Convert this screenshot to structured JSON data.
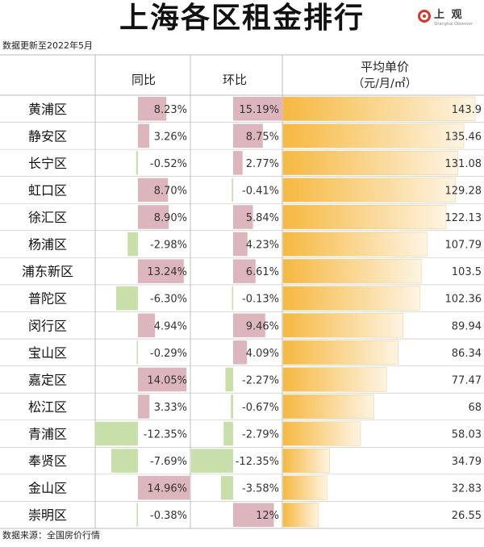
{
  "title": "上海各区租金排行",
  "brand": {
    "name": "上 观",
    "sub": "Shanghai Observer"
  },
  "note": "数据更新至2022年5月",
  "source": "数据来源：全国房价行情",
  "columns": {
    "yoy": "同比",
    "mom": "环比",
    "price_line1": "平均单价",
    "price_line2": "（元/月/㎡）"
  },
  "colors": {
    "bar_pos": "#ddb6bd",
    "bar_neg": "#c9dfaa",
    "price_start": "#f6b840",
    "price_end": "#fdf4e3",
    "grid": "#bdbdbd"
  },
  "chart_data": [
    {
      "type": "bar",
      "title": "同比",
      "categories": [
        "黄浦区",
        "静安区",
        "长宁区",
        "虹口区",
        "徐汇区",
        "杨浦区",
        "浦东新区",
        "普陀区",
        "闵行区",
        "宝山区",
        "嘉定区",
        "松江区",
        "青浦区",
        "奉贤区",
        "金山区",
        "崇明区"
      ],
      "values": [
        8.23,
        3.26,
        -0.52,
        8.7,
        8.9,
        -2.98,
        13.24,
        -6.3,
        4.94,
        -0.29,
        14.05,
        3.33,
        -12.35,
        -7.69,
        14.96,
        -0.38
      ],
      "labels": [
        "8.23%",
        "3.26%",
        "-0.52%",
        "8.70%",
        "8.90%",
        "-2.98%",
        "13.24%",
        "-6.30%",
        "4.94%",
        "-0.29%",
        "14.05%",
        "3.33%",
        "-12.35%",
        "-7.69%",
        "14.96%",
        "-0.38%"
      ]
    },
    {
      "type": "bar",
      "title": "环比",
      "categories": [
        "黄浦区",
        "静安区",
        "长宁区",
        "虹口区",
        "徐汇区",
        "杨浦区",
        "浦东新区",
        "普陀区",
        "闵行区",
        "宝山区",
        "嘉定区",
        "松江区",
        "青浦区",
        "奉贤区",
        "金山区",
        "崇明区"
      ],
      "values": [
        15.19,
        8.75,
        2.77,
        -0.41,
        5.84,
        4.23,
        6.61,
        -0.13,
        9.46,
        4.09,
        -2.27,
        -0.67,
        -2.79,
        -12.35,
        -3.58,
        12
      ],
      "labels": [
        "15.19%",
        "8.75%",
        "2.77%",
        "-0.41%",
        "5.84%",
        "4.23%",
        "6.61%",
        "-0.13%",
        "9.46%",
        "4.09%",
        "-2.27%",
        "-0.67%",
        "-2.79%",
        "-12.35%",
        "-3.58%",
        "12%"
      ]
    },
    {
      "type": "bar",
      "title": "平均单价",
      "ylabel": "（元/月/㎡）",
      "categories": [
        "黄浦区",
        "静安区",
        "长宁区",
        "虹口区",
        "徐汇区",
        "杨浦区",
        "浦东新区",
        "普陀区",
        "闵行区",
        "宝山区",
        "嘉定区",
        "松江区",
        "青浦区",
        "奉贤区",
        "金山区",
        "崇明区"
      ],
      "values": [
        143.9,
        135.46,
        131.08,
        129.28,
        122.13,
        107.79,
        103.5,
        102.36,
        89.94,
        86.34,
        77.47,
        68,
        58.03,
        34.79,
        32.83,
        26.55
      ],
      "labels": [
        "143.9",
        "135.46",
        "131.08",
        "129.28",
        "122.13",
        "107.79",
        "103.5",
        "102.36",
        "89.94",
        "86.34",
        "77.47",
        "68",
        "58.03",
        "34.79",
        "32.83",
        "26.55"
      ]
    }
  ]
}
